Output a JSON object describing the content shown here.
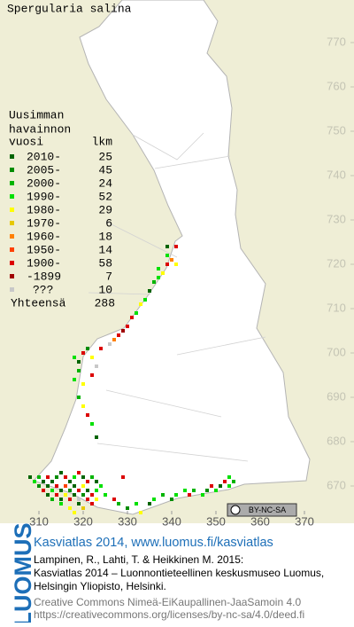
{
  "chart_data": {
    "type": "grid-map",
    "title": "Spergularia salina",
    "legend_header": [
      "Uusimman",
      "havainnon",
      "vuosi"
    ],
    "legend_count_header": "lkm",
    "periods": [
      {
        "label": "2010-",
        "count": 25,
        "color": "#006400"
      },
      {
        "label": "2005-",
        "count": 45,
        "color": "#008c00"
      },
      {
        "label": "2000-",
        "count": 24,
        "color": "#00b400"
      },
      {
        "label": "1990-",
        "count": 52,
        "color": "#00e000"
      },
      {
        "label": "1980-",
        "count": 29,
        "color": "#ffff00"
      },
      {
        "label": "1970-",
        "count": 6,
        "color": "#e6c800"
      },
      {
        "label": "1960-",
        "count": 18,
        "color": "#ff8000"
      },
      {
        "label": "1950-",
        "count": 14,
        "color": "#ff4000"
      },
      {
        "label": "1900-",
        "count": 58,
        "color": "#dc0000"
      },
      {
        "label": "-1899",
        "count": 7,
        "color": "#a00000"
      },
      {
        "label": "???",
        "count": 10,
        "color": "#c8c8c8"
      }
    ],
    "total_label": "Yhteensä",
    "total": 288,
    "xlim": [
      301.2,
      381.2
    ],
    "ylim": [
      663.6,
      779.6
    ],
    "xticks": [
      310,
      320,
      330,
      340,
      350,
      360,
      370
    ],
    "yticks": [
      670,
      680,
      690,
      700,
      710,
      720,
      730,
      740,
      750,
      760,
      770
    ],
    "squares": [
      [
        308,
        672,
        0
      ],
      [
        309,
        671,
        3
      ],
      [
        310,
        672,
        2
      ],
      [
        311,
        671,
        0
      ],
      [
        312,
        672,
        8
      ],
      [
        313,
        671,
        0
      ],
      [
        314,
        672,
        1
      ],
      [
        315,
        673,
        0
      ],
      [
        316,
        672,
        8
      ],
      [
        317,
        671,
        0
      ],
      [
        318,
        672,
        3
      ],
      [
        319,
        673,
        8
      ],
      [
        320,
        672,
        0
      ],
      [
        321,
        671,
        8
      ],
      [
        322,
        672,
        2
      ],
      [
        323,
        671,
        0
      ],
      [
        324,
        670,
        3
      ],
      [
        310,
        670,
        1
      ],
      [
        311,
        669,
        8
      ],
      [
        312,
        670,
        0
      ],
      [
        313,
        669,
        3
      ],
      [
        314,
        670,
        8
      ],
      [
        315,
        669,
        0
      ],
      [
        316,
        670,
        7
      ],
      [
        317,
        669,
        1
      ],
      [
        318,
        670,
        0
      ],
      [
        319,
        669,
        8
      ],
      [
        320,
        670,
        4
      ],
      [
        321,
        669,
        0
      ],
      [
        322,
        668,
        8
      ],
      [
        323,
        669,
        3
      ],
      [
        312,
        668,
        0
      ],
      [
        313,
        667,
        2
      ],
      [
        314,
        668,
        8
      ],
      [
        315,
        667,
        0
      ],
      [
        316,
        668,
        4
      ],
      [
        317,
        667,
        8
      ],
      [
        318,
        668,
        0
      ],
      [
        319,
        667,
        10
      ],
      [
        320,
        668,
        1
      ],
      [
        321,
        667,
        8
      ],
      [
        315,
        666,
        3
      ],
      [
        317,
        665,
        4
      ],
      [
        319,
        666,
        0
      ],
      [
        320,
        665,
        5
      ],
      [
        322,
        666,
        8
      ],
      [
        318,
        664,
        4
      ],
      [
        323,
        667,
        4
      ],
      [
        325,
        668,
        3
      ],
      [
        327,
        667,
        8
      ],
      [
        328,
        666,
        2
      ],
      [
        330,
        665,
        1
      ],
      [
        332,
        666,
        3
      ],
      [
        333,
        664,
        4
      ],
      [
        335,
        666,
        0
      ],
      [
        336,
        667,
        3
      ],
      [
        338,
        668,
        2
      ],
      [
        340,
        667,
        1
      ],
      [
        341,
        668,
        3
      ],
      [
        343,
        669,
        3
      ],
      [
        344,
        668,
        8
      ],
      [
        345,
        669,
        2
      ],
      [
        347,
        668,
        3
      ],
      [
        348,
        669,
        1
      ],
      [
        349,
        670,
        8
      ],
      [
        350,
        669,
        3
      ],
      [
        351,
        670,
        0
      ],
      [
        352,
        671,
        8
      ],
      [
        353,
        670,
        3
      ],
      [
        354,
        671,
        2
      ],
      [
        353,
        672,
        3
      ],
      [
        318,
        699,
        3
      ],
      [
        319,
        698,
        0
      ],
      [
        320,
        700,
        8
      ],
      [
        321,
        701,
        1
      ],
      [
        322,
        699,
        4
      ],
      [
        319,
        696,
        2
      ],
      [
        318,
        694,
        3
      ],
      [
        320,
        693,
        4
      ],
      [
        322,
        695,
        8
      ],
      [
        323,
        697,
        10
      ],
      [
        324,
        701,
        8
      ],
      [
        326,
        702,
        10
      ],
      [
        327,
        703,
        6
      ],
      [
        328,
        704,
        8
      ],
      [
        319,
        690,
        2
      ],
      [
        320,
        688,
        4
      ],
      [
        321,
        686,
        8
      ],
      [
        322,
        684,
        3
      ],
      [
        323,
        681,
        0
      ],
      [
        329,
        705,
        9
      ],
      [
        330,
        706,
        8
      ],
      [
        331,
        708,
        8
      ],
      [
        332,
        709,
        3
      ],
      [
        333,
        711,
        4
      ],
      [
        334,
        712,
        3
      ],
      [
        335,
        714,
        0
      ],
      [
        336,
        716,
        2
      ],
      [
        337,
        717,
        3
      ],
      [
        338,
        718,
        4
      ],
      [
        339,
        720,
        8
      ],
      [
        340,
        721,
        6
      ],
      [
        341,
        720,
        4
      ],
      [
        339,
        722,
        3
      ],
      [
        339,
        724,
        0
      ],
      [
        341,
        724,
        8
      ],
      [
        337,
        719,
        3
      ],
      [
        329,
        672,
        8
      ]
    ],
    "license_badge": "BY-NC-SA"
  },
  "footer": {
    "brand": "LUOMUS",
    "heading": "Kasviatlas 2014, www.luomus.fi/kasviatlas",
    "citation": [
      "Lampinen, R., Lahti, T. & Heikkinen M. 2015:",
      "Kasviatlas 2014 – Luonnontieteellinen keskusmuseo Luomus,",
      "Helsingin Yliopisto, Helsinki."
    ],
    "license": [
      "Creative Commons Nimeä-EiKaupallinen-JaaSamoin 4.0",
      "https://creativecommons.org/licenses/by-nc-sa/4.0/deed.fi"
    ]
  }
}
